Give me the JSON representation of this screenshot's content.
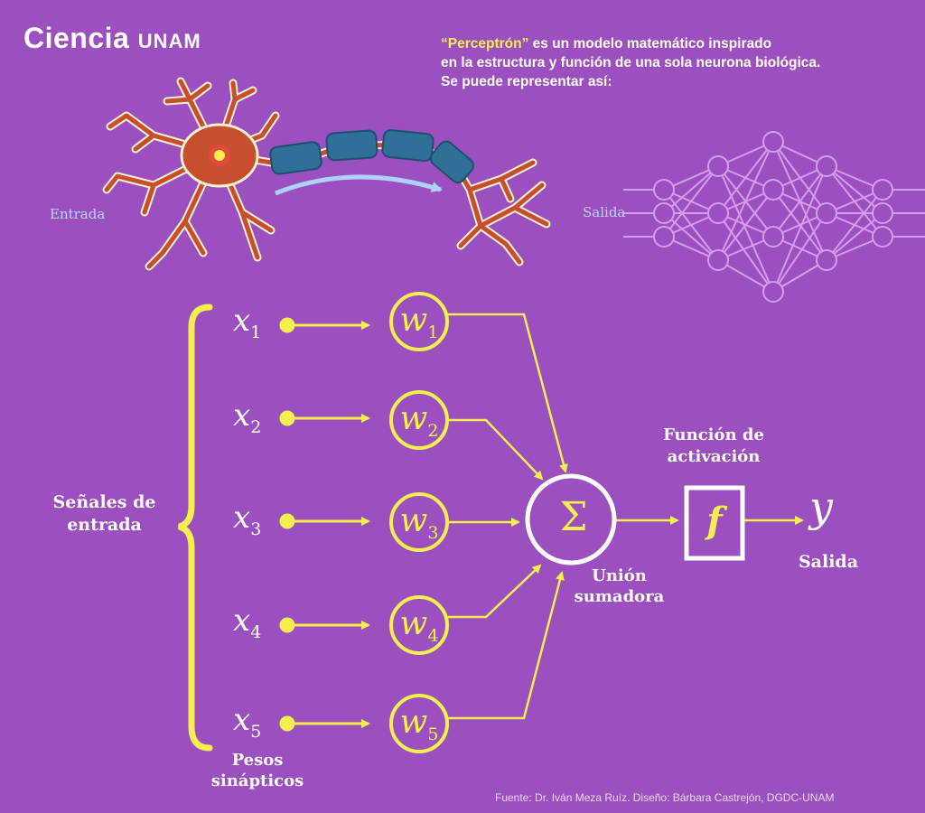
{
  "brand": {
    "logo_main": "Ciencia",
    "logo_sub": "UNAM"
  },
  "intro": {
    "term": "“Perceptrón”",
    "line1_rest": " es un modelo matemático inspirado",
    "line2_start": "en la estructura y función de ",
    "line2_bold": "una sola neurona biológica.",
    "line3": "Se puede representar así:"
  },
  "neuron": {
    "input_label": "Entrada",
    "output_label": "Salida"
  },
  "perceptron": {
    "inputs_label": "Señales de entrada",
    "weights_label": "Pesos sinápticos",
    "inputs": [
      {
        "var": "x",
        "sub": "1"
      },
      {
        "var": "x",
        "sub": "2"
      },
      {
        "var": "x",
        "sub": "3"
      },
      {
        "var": "x",
        "sub": "4"
      },
      {
        "var": "x",
        "sub": "5"
      }
    ],
    "weights": [
      {
        "var": "w",
        "sub": "1"
      },
      {
        "var": "w",
        "sub": "2"
      },
      {
        "var": "w",
        "sub": "3"
      },
      {
        "var": "w",
        "sub": "4"
      },
      {
        "var": "w",
        "sub": "5"
      }
    ],
    "sum_symbol": "Σ",
    "sum_label": "Unión sumadora",
    "activation_label": "Función de activación",
    "activation_symbol": "f",
    "output_var": "y",
    "output_label": "Salida"
  },
  "source": "Fuente: Dr. Iván Meza Ruíz. Diseño: Bárbara Castrejón, DGDC-UNAM",
  "colors": {
    "background": "#9c4fbf",
    "accent": "#f6ee4e",
    "text": "#ffffff",
    "network": "#d69cf0"
  }
}
